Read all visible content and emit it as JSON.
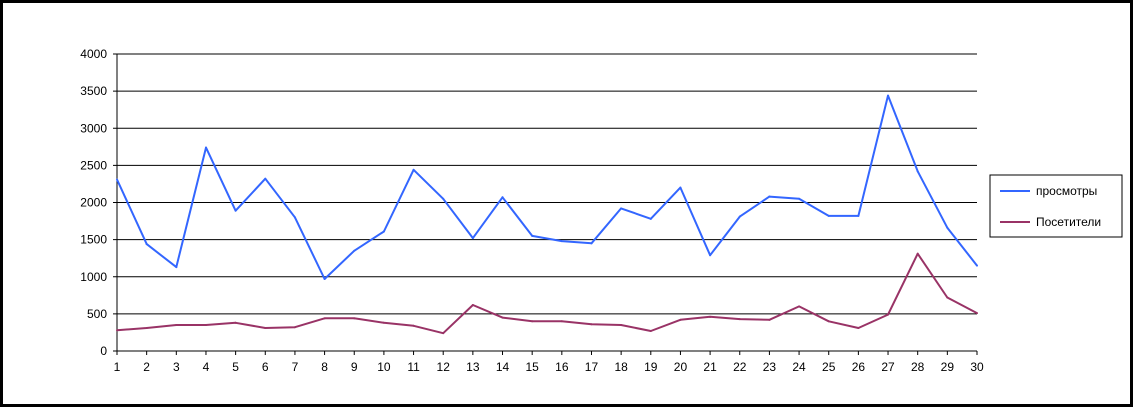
{
  "chart_data": {
    "type": "line",
    "title": "",
    "xlabel": "",
    "ylabel": "",
    "categories": [
      "1",
      "2",
      "3",
      "4",
      "5",
      "6",
      "7",
      "8",
      "9",
      "10",
      "11",
      "12",
      "13",
      "14",
      "15",
      "16",
      "17",
      "18",
      "19",
      "20",
      "21",
      "22",
      "23",
      "24",
      "25",
      "26",
      "27",
      "28",
      "29",
      "30"
    ],
    "ylim": [
      0,
      4000
    ],
    "yticks": [
      0,
      500,
      1000,
      1500,
      2000,
      2500,
      3000,
      3500,
      4000
    ],
    "grid": "horizontal",
    "legend_position": "right",
    "series": [
      {
        "name": "просмотры",
        "color": "#3366ff",
        "values": [
          2310,
          1440,
          1130,
          2740,
          1890,
          2320,
          1800,
          970,
          1350,
          1610,
          2440,
          2050,
          1520,
          2070,
          1550,
          1480,
          1450,
          1920,
          1780,
          2200,
          1290,
          1810,
          2080,
          2050,
          1820,
          1820,
          3440,
          2420,
          1660,
          1150
        ]
      },
      {
        "name": "Посетители",
        "color": "#993366",
        "values": [
          280,
          310,
          350,
          350,
          380,
          310,
          320,
          440,
          440,
          380,
          340,
          240,
          620,
          450,
          400,
          400,
          360,
          350,
          270,
          420,
          460,
          430,
          420,
          600,
          400,
          310,
          490,
          1310,
          720,
          510
        ]
      }
    ]
  }
}
